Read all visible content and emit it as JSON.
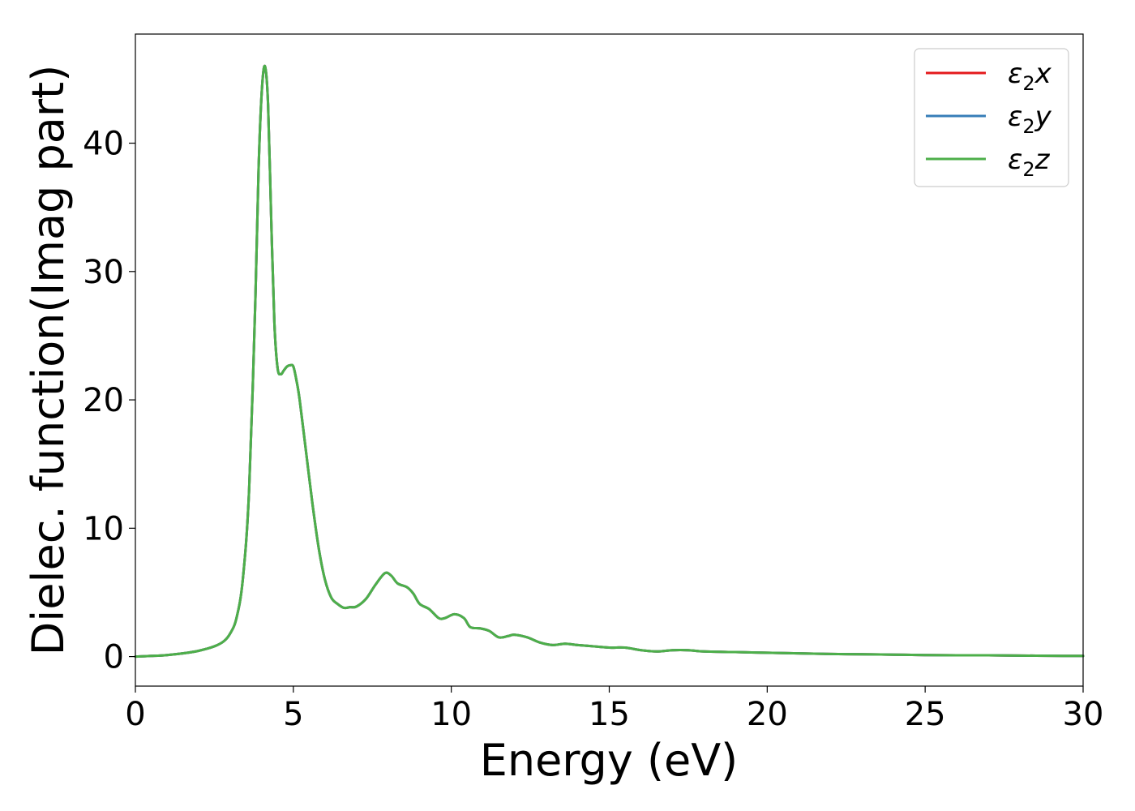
{
  "chart_data": {
    "type": "line",
    "xlabel": "Energy (eV)",
    "ylabel": "Dielec. function(Imag part)",
    "xlim": [
      0,
      30
    ],
    "ylim": [
      -2.3,
      48.5
    ],
    "xticks": [
      0,
      5,
      10,
      15,
      20,
      25,
      30
    ],
    "yticks": [
      0,
      10,
      20,
      30,
      40
    ],
    "grid": false,
    "legend_position": "top-right",
    "colors": {
      "eps2x": "#e41a1c",
      "eps2y": "#377eb8",
      "eps2z": "#4daf4a"
    },
    "legend": [
      {
        "key": "eps2x",
        "base": "ε",
        "sub": "2",
        "var": "x"
      },
      {
        "key": "eps2y",
        "base": "ε",
        "sub": "2",
        "var": "y"
      },
      {
        "key": "eps2z",
        "base": "ε",
        "sub": "2",
        "var": "z"
      }
    ],
    "x": [
      0,
      0.5,
      1.0,
      1.5,
      2.0,
      2.5,
      2.8,
      3.0,
      3.2,
      3.4,
      3.6,
      3.8,
      3.9,
      4.0,
      4.1,
      4.2,
      4.3,
      4.4,
      4.5,
      4.6,
      4.7,
      4.8,
      4.9,
      5.0,
      5.1,
      5.2,
      5.4,
      5.6,
      5.8,
      6.0,
      6.2,
      6.4,
      6.6,
      6.8,
      7.0,
      7.3,
      7.6,
      7.9,
      8.1,
      8.3,
      8.6,
      8.8,
      9.0,
      9.3,
      9.6,
      9.8,
      10.1,
      10.4,
      10.6,
      10.9,
      11.2,
      11.5,
      11.8,
      12.0,
      12.4,
      12.8,
      13.2,
      13.6,
      14.0,
      14.5,
      15.0,
      15.5,
      16.0,
      16.5,
      17.0,
      17.5,
      18.0,
      19.0,
      20.0,
      21.0,
      22.0,
      23.0,
      24.0,
      25.0,
      26.0,
      27.0,
      28.0,
      29.0,
      30.0
    ],
    "series": [
      {
        "key": "eps2x",
        "values": [
          0.0,
          0.05,
          0.12,
          0.25,
          0.45,
          0.8,
          1.2,
          1.8,
          3.0,
          6.0,
          13.0,
          28.0,
          38.0,
          44.0,
          46.0,
          43.0,
          34.0,
          26.0,
          22.5,
          22.0,
          22.3,
          22.6,
          22.7,
          22.6,
          21.5,
          20.0,
          16.0,
          12.0,
          8.5,
          6.0,
          4.6,
          4.1,
          3.8,
          3.85,
          3.9,
          4.5,
          5.6,
          6.5,
          6.3,
          5.7,
          5.4,
          4.9,
          4.1,
          3.7,
          3.0,
          3.0,
          3.3,
          3.0,
          2.3,
          2.2,
          2.0,
          1.5,
          1.6,
          1.7,
          1.5,
          1.1,
          0.9,
          1.0,
          0.9,
          0.8,
          0.7,
          0.7,
          0.5,
          0.4,
          0.5,
          0.5,
          0.4,
          0.35,
          0.3,
          0.25,
          0.2,
          0.18,
          0.15,
          0.12,
          0.1,
          0.1,
          0.08,
          0.06,
          0.05
        ]
      },
      {
        "key": "eps2y",
        "values": [
          0.0,
          0.05,
          0.12,
          0.25,
          0.45,
          0.8,
          1.2,
          1.8,
          3.0,
          6.0,
          13.0,
          28.0,
          38.0,
          44.0,
          46.0,
          43.0,
          34.0,
          26.0,
          22.5,
          22.0,
          22.3,
          22.6,
          22.7,
          22.6,
          21.5,
          20.0,
          16.0,
          12.0,
          8.5,
          6.0,
          4.6,
          4.1,
          3.8,
          3.85,
          3.9,
          4.5,
          5.6,
          6.5,
          6.3,
          5.7,
          5.4,
          4.9,
          4.1,
          3.7,
          3.0,
          3.0,
          3.3,
          3.0,
          2.3,
          2.2,
          2.0,
          1.5,
          1.6,
          1.7,
          1.5,
          1.1,
          0.9,
          1.0,
          0.9,
          0.8,
          0.7,
          0.7,
          0.5,
          0.4,
          0.5,
          0.5,
          0.4,
          0.35,
          0.3,
          0.25,
          0.2,
          0.18,
          0.15,
          0.12,
          0.1,
          0.1,
          0.08,
          0.06,
          0.05
        ]
      },
      {
        "key": "eps2z",
        "values": [
          0.0,
          0.05,
          0.12,
          0.25,
          0.45,
          0.8,
          1.2,
          1.8,
          3.0,
          6.0,
          13.0,
          28.0,
          38.0,
          44.0,
          46.0,
          43.0,
          34.0,
          26.0,
          22.5,
          22.0,
          22.3,
          22.6,
          22.7,
          22.6,
          21.5,
          20.0,
          16.0,
          12.0,
          8.5,
          6.0,
          4.6,
          4.1,
          3.8,
          3.85,
          3.9,
          4.5,
          5.6,
          6.5,
          6.3,
          5.7,
          5.4,
          4.9,
          4.1,
          3.7,
          3.0,
          3.0,
          3.3,
          3.0,
          2.3,
          2.2,
          2.0,
          1.5,
          1.6,
          1.7,
          1.5,
          1.1,
          0.9,
          1.0,
          0.9,
          0.8,
          0.7,
          0.7,
          0.5,
          0.4,
          0.5,
          0.5,
          0.4,
          0.35,
          0.3,
          0.25,
          0.2,
          0.18,
          0.15,
          0.12,
          0.1,
          0.1,
          0.08,
          0.06,
          0.05
        ]
      }
    ]
  }
}
